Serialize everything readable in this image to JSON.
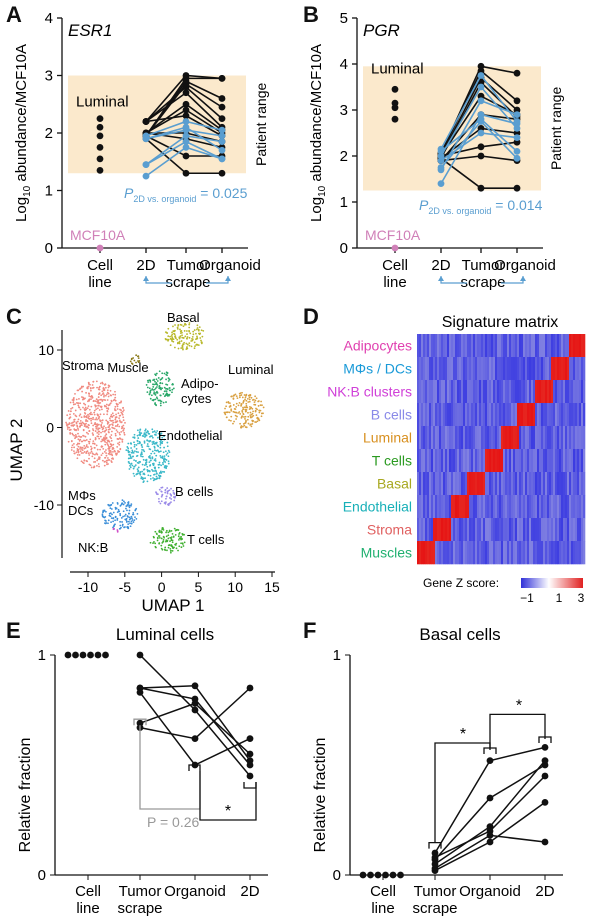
{
  "panels": {
    "A": {
      "letter": "A",
      "gene": "ESR1",
      "ylabel": "Log10 abundance/MCF10A",
      "ylabel_main": "Log",
      "ylabel_sub": "10",
      "ylabel_rest": " abundance/MCF10A",
      "patient_range_label": "Patient range",
      "luminal_label": "Luminal",
      "mcf10a_label": "MCF10A",
      "p_label": "P",
      "p_sub": "2D vs. organoid",
      "p_value": "= 0.025",
      "xcats": [
        "Cell\nline",
        "2D",
        "Tumor\nscrape",
        "Organoid"
      ],
      "chart_data": {
        "type": "scatter",
        "title": "ESR1",
        "ylabel": "Log10 abundance/MCF10A",
        "ylim": [
          0,
          4
        ],
        "yticks": [
          0,
          1,
          2,
          3,
          4
        ],
        "categories": [
          "Cell line",
          "2D",
          "Tumor scrape",
          "Organoid"
        ],
        "patient_range": [
          1.3,
          3.0
        ],
        "luminal": [
          2.25,
          2.1,
          1.95,
          1.75,
          1.55,
          1.35
        ],
        "mcf10a": 0,
        "paired_black": [
          [
            2.2,
            3.0,
            2.95
          ],
          [
            1.95,
            2.95,
            2.95
          ],
          [
            1.95,
            2.9,
            2.6
          ],
          [
            1.95,
            2.85,
            2.45
          ],
          [
            2.2,
            2.8,
            2.25
          ],
          [
            2.2,
            2.7,
            2.1
          ],
          [
            2.0,
            2.5,
            2.05
          ],
          [
            2.0,
            2.4,
            2.0
          ],
          [
            2.2,
            2.3,
            1.95
          ],
          [
            2.0,
            2.0,
            1.85
          ],
          [
            2.0,
            1.9,
            1.75
          ],
          [
            1.95,
            1.6,
            1.6
          ],
          [
            1.9,
            1.3,
            1.3
          ]
        ],
        "paired_blue": [
          [
            1.95,
            2.2,
            2.05
          ],
          [
            1.9,
            2.05,
            1.95
          ],
          [
            1.45,
            1.95,
            1.85
          ],
          [
            1.25,
            1.75,
            1.55
          ],
          [
            1.9,
            2.1,
            1.7
          ],
          [
            1.45,
            1.85,
            1.55
          ]
        ]
      }
    },
    "B": {
      "letter": "B",
      "gene": "PGR",
      "ylabel_main": "Log",
      "ylabel_sub": "10",
      "ylabel_rest": " abundance/MCF10A",
      "patient_range_label": "Patient range",
      "luminal_label": "Luminal",
      "mcf10a_label": "MCF10A",
      "p_label": "P",
      "p_sub": "2D vs. organoid",
      "p_value": "= 0.014",
      "xcats": [
        "Cell\nline",
        "2D",
        "Tumor\nscrape",
        "Organoid"
      ],
      "chart_data": {
        "type": "scatter",
        "title": "PGR",
        "ylabel": "Log10 abundance/MCF10A",
        "ylim": [
          0,
          5
        ],
        "yticks": [
          0,
          1,
          2,
          3,
          4,
          5
        ],
        "categories": [
          "Cell line",
          "2D",
          "Tumor scrape",
          "Organoid"
        ],
        "patient_range": [
          1.25,
          3.95
        ],
        "luminal": [
          3.45,
          3.15,
          3.05,
          2.8
        ],
        "mcf10a": 0,
        "paired_black": [
          [
            2.05,
            3.95,
            3.8
          ],
          [
            2.05,
            3.85,
            3.2
          ],
          [
            2.0,
            3.7,
            3.0
          ],
          [
            1.95,
            3.6,
            2.85
          ],
          [
            2.0,
            3.3,
            2.9
          ],
          [
            1.9,
            2.9,
            2.8
          ],
          [
            1.95,
            2.6,
            2.5
          ],
          [
            1.9,
            2.0,
            1.9
          ],
          [
            1.95,
            1.3,
            1.3
          ],
          [
            2.0,
            2.2,
            2.3
          ]
        ],
        "paired_blue": [
          [
            2.15,
            3.75,
            2.75
          ],
          [
            2.0,
            3.5,
            2.6
          ],
          [
            1.7,
            3.2,
            2.9
          ],
          [
            1.4,
            2.9,
            2.7
          ],
          [
            2.1,
            2.8,
            2.1
          ],
          [
            1.75,
            2.75,
            1.95
          ],
          [
            1.9,
            2.5,
            2.4
          ]
        ]
      }
    },
    "C": {
      "letter": "C",
      "xlabel": "UMAP 1",
      "ylabel": "UMAP 2",
      "xticks": [
        -10,
        -5,
        0,
        5,
        10,
        15
      ],
      "yticks": [
        10,
        0,
        -10
      ],
      "clusters": [
        {
          "name": "Basal",
          "color": "#b8b82a"
        },
        {
          "name": "Muscle",
          "color": "#8b7a1a"
        },
        {
          "name": "Adipo-\ncytes",
          "color": "#2aa86a"
        },
        {
          "name": "Luminal",
          "color": "#d9a040"
        },
        {
          "name": "Stroma",
          "color": "#f08a80"
        },
        {
          "name": "Endothelial",
          "color": "#3ab8c8"
        },
        {
          "name": "B cells",
          "color": "#9a8ae8"
        },
        {
          "name": "MΦs\nDCs",
          "color": "#3a8ed8"
        },
        {
          "name": "NK:B",
          "color": "#d050c8"
        },
        {
          "name": "T cells",
          "color": "#40b030"
        }
      ]
    },
    "D": {
      "letter": "D",
      "title": "Signature matrix",
      "rows": [
        {
          "label": "Adipocytes",
          "color": "#e040b0"
        },
        {
          "label": "MΦs / DCs",
          "color": "#1a9ad8"
        },
        {
          "label": "NK:B clusters",
          "color": "#d040d8"
        },
        {
          "label": "B cells",
          "color": "#8a8ae8"
        },
        {
          "label": "Luminal",
          "color": "#d89020"
        },
        {
          "label": "T cells",
          "color": "#2a9a20"
        },
        {
          "label": "Basal",
          "color": "#a8a820"
        },
        {
          "label": "Endothelial",
          "color": "#18b0b8"
        },
        {
          "label": "Stroma",
          "color": "#e06060"
        },
        {
          "label": "Muscles",
          "color": "#20b070"
        }
      ],
      "legend_title": "Gene Z score:",
      "legend_ticks": [
        "−1",
        "1",
        "3"
      ]
    },
    "E": {
      "letter": "E",
      "title": "Luminal cells",
      "ylabel": "Relative fraction",
      "p_text": "P = 0.26",
      "star": "*",
      "xcats": [
        "Cell\nline",
        "Tumor\nscrape",
        "Organoid",
        "2D"
      ],
      "chart_data": {
        "type": "scatter",
        "title": "Luminal cells",
        "ylabel": "Relative fraction",
        "ylim": [
          0,
          1
        ],
        "yticks": [
          0,
          1
        ],
        "categories": [
          "Cell line",
          "Tumor scrape",
          "Organoid",
          "2D"
        ],
        "cell_line": [
          1,
          1,
          1,
          1,
          1,
          1
        ],
        "paired": [
          [
            1.0,
            0.75,
            0.45
          ],
          [
            0.85,
            0.86,
            0.52
          ],
          [
            0.85,
            0.8,
            0.5
          ],
          [
            0.69,
            0.78,
            0.55
          ],
          [
            0.67,
            0.62,
            0.85
          ],
          [
            0.83,
            0.5,
            0.62
          ]
        ]
      }
    },
    "F": {
      "letter": "F",
      "title": "Basal cells",
      "ylabel": "Relative fraction",
      "star1": "*",
      "star2": "*",
      "xcats": [
        "Cell\nline",
        "Tumor\nscrape",
        "Organoid",
        "2D"
      ],
      "chart_data": {
        "type": "scatter",
        "title": "Basal cells",
        "ylabel": "Relative fraction",
        "ylim": [
          0,
          1
        ],
        "yticks": [
          0,
          1
        ],
        "categories": [
          "Cell line",
          "Tumor scrape",
          "Organoid",
          "2D"
        ],
        "cell_line": [
          0,
          0,
          0,
          0,
          0,
          0
        ],
        "paired": [
          [
            0.1,
            0.52,
            0.58
          ],
          [
            0.07,
            0.35,
            0.5
          ],
          [
            0.05,
            0.22,
            0.52
          ],
          [
            0.08,
            0.2,
            0.45
          ],
          [
            0.03,
            0.18,
            0.15
          ],
          [
            0.02,
            0.15,
            0.33
          ]
        ]
      }
    }
  }
}
